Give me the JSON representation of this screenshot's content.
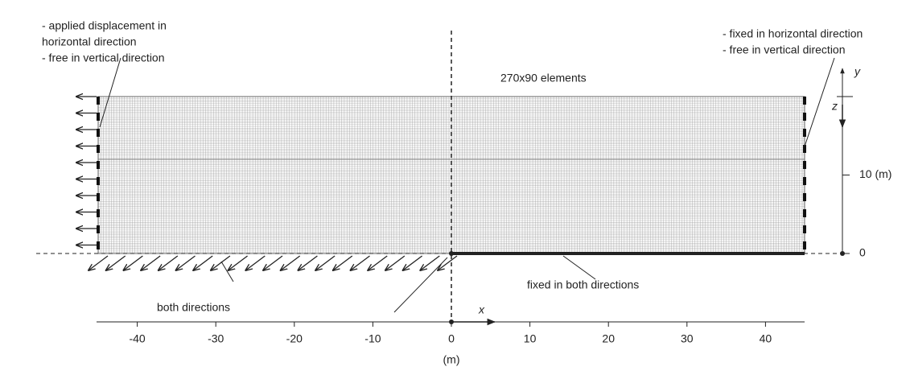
{
  "annotations": {
    "left": [
      "- applied displacement in",
      "horizontal direction",
      "- free in vertical direction"
    ],
    "right": [
      "- fixed in horizontal direction",
      "- free in vertical direction"
    ],
    "mesh": "270x90 elements",
    "bottom_right": "fixed in both directions",
    "bottom_left": "both directions"
  },
  "vertical_axis": {
    "label": "y",
    "depth_label": "z",
    "ticks": [
      0,
      {
        "value": 10,
        "label": "10 (m)"
      }
    ]
  },
  "x_axis": {
    "label": "x",
    "unit": "(m)",
    "ticks": [
      -40,
      -30,
      -20,
      -10,
      0,
      10,
      20,
      30,
      40
    ]
  }
}
